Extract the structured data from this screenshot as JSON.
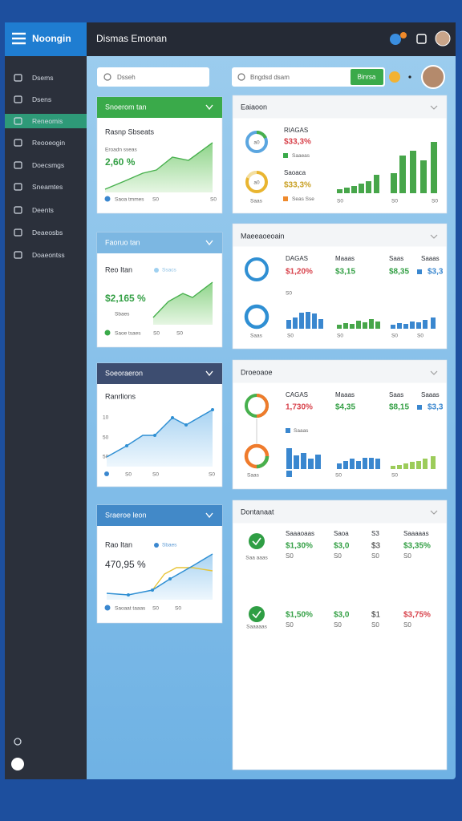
{
  "header": {
    "logo": "Noongin",
    "title": "Dismas Emonan"
  },
  "sidebar": {
    "items": [
      "Dsems",
      "Dsens",
      "Reneomis",
      "Reooeogin",
      "Doecsmgs",
      "Sneamtes",
      "Deents",
      "Deaeosbs",
      "Doaeontss"
    ]
  },
  "search": {
    "left": "Dsseh",
    "right": "Bngdsd dsam",
    "button": "Binrsa"
  },
  "left_cards": [
    {
      "title": "Snoerom tan",
      "label": "Rasnp Sbseats",
      "sub": "Eroadn sseas",
      "value": "2,60 %",
      "legend": "Saoa tmmes",
      "ticks": [
        "S0",
        "S0"
      ]
    },
    {
      "title": "Faoruo tan",
      "label": "Reo Itan",
      "tag": "Ssacs",
      "value": "$2,165 %",
      "sub": "Sbaes",
      "legend": "Saoe tsaes",
      "ticks": [
        "S0",
        "S0"
      ]
    },
    {
      "title": "Soeoraeron",
      "label": "Ranrlions",
      "yticks": [
        "10",
        "50",
        "50"
      ],
      "ticks": [
        "S0",
        "S0",
        "S0"
      ]
    },
    {
      "title": "Sraeroe leon",
      "label": "Rao Itan",
      "tag": "Sbaes",
      "value": "470,95 %",
      "legend": "Saoaat taaas",
      "ticks": [
        "S0",
        "S0"
      ]
    }
  ],
  "right_cards": [
    {
      "title": "Eaiaoon",
      "rows": [
        {
          "center": "a0",
          "name": "RIAGAS",
          "value": "$33,3%",
          "legend": "Saaeas"
        },
        {
          "center": "a0",
          "name": "Saoaca",
          "value": "$33,3%",
          "legend": "Seas Sse"
        }
      ],
      "ticks": [
        "Saas",
        "S0",
        "S0",
        "S0"
      ]
    },
    {
      "title": "Maeeaoeoain",
      "names": [
        "DAGAS",
        "Maaas",
        "Saas",
        "Saaas"
      ],
      "values": [
        "$1,20%",
        "$3,15",
        "$8,35",
        "$3,3"
      ],
      "note": "S0",
      "ticks": [
        "Saas",
        "S0",
        "S0",
        "S0",
        "S0"
      ]
    },
    {
      "title": "Droeoaoe",
      "names": [
        "CAGAS",
        "Maaas",
        "Saas",
        "Saaas"
      ],
      "values": [
        "1,730%",
        "$4,35",
        "$8,15",
        "$3,3"
      ],
      "note": "Saaas",
      "ticks": [
        "Saas",
        "S0",
        "S0"
      ]
    },
    {
      "title": "Dontanaat",
      "heads": [
        "Saaaoaas",
        "Saoa",
        "S3",
        "Saaaaas"
      ],
      "rows": [
        {
          "icon_label": "Saa aaas",
          "cells": [
            "$1,30%",
            "$3,0",
            "$3",
            "$3,35%"
          ],
          "subs": [
            "S0",
            "S0",
            "S0",
            "S0"
          ]
        },
        {
          "icon_label": "Saaaaas",
          "cells": [
            "$1,50%",
            "$3,0",
            "$1",
            "$3,75%"
          ],
          "subs": [
            "S0",
            "S0",
            "S0",
            "S0"
          ]
        }
      ]
    }
  ]
}
